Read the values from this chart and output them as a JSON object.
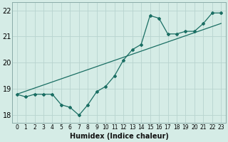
{
  "xlabel": "Humidex (Indice chaleur)",
  "ylabel": "",
  "xlim": [
    -0.5,
    23.5
  ],
  "ylim": [
    17.7,
    22.3
  ],
  "xticks": [
    0,
    1,
    2,
    3,
    4,
    5,
    6,
    7,
    8,
    9,
    10,
    11,
    12,
    13,
    14,
    15,
    16,
    17,
    18,
    19,
    20,
    21,
    22,
    23
  ],
  "yticks": [
    18,
    19,
    20,
    21,
    22
  ],
  "background_color": "#d5ece6",
  "grid_color": "#b8d4cf",
  "line_color": "#1a6e63",
  "series1_x": [
    0,
    1,
    2,
    3,
    4,
    5,
    6,
    7,
    8,
    9,
    10,
    11,
    12,
    13,
    14,
    15,
    16,
    17,
    18,
    19,
    20,
    21,
    22,
    23
  ],
  "series1_y": [
    18.8,
    18.7,
    18.8,
    18.8,
    18.8,
    18.4,
    18.3,
    18.0,
    18.4,
    18.9,
    19.1,
    19.5,
    20.1,
    20.5,
    20.7,
    21.8,
    21.7,
    21.1,
    21.1,
    21.2,
    21.2,
    21.5,
    21.9,
    21.9
  ],
  "series2_x": [
    0,
    23
  ],
  "series2_y": [
    18.8,
    21.5
  ],
  "marker_style": "D",
  "marker_size": 2.0,
  "line_width": 0.9
}
